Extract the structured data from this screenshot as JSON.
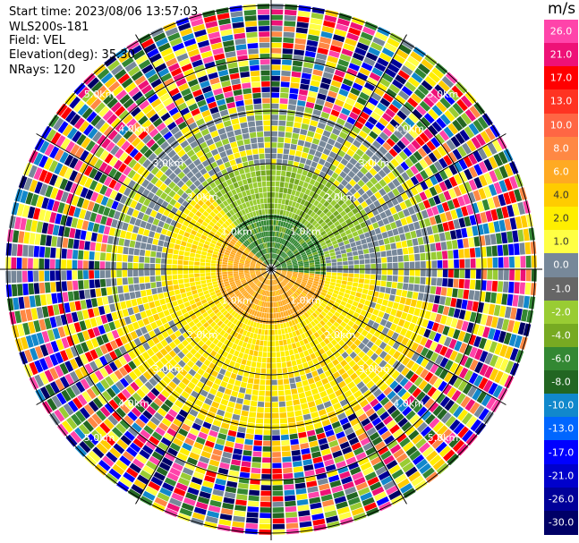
{
  "header": {
    "start_time": "Start time: 2023/08/06 13:57:03",
    "instrument": "WLS200s-181",
    "field": "Field: VEL",
    "elevation": "Elevation(deg): 35.30",
    "nrays": "NRays: 120"
  },
  "colorbar": {
    "unit": "m/s",
    "ticks": [
      "26.0",
      "21.0",
      "17.0",
      "13.0",
      "10.0",
      "8.0",
      "6.0",
      "4.0",
      "2.0",
      "1.0",
      "0.0",
      "-1.0",
      "-2.0",
      "-4.0",
      "-6.0",
      "-8.0",
      "-10.0",
      "-13.0",
      "-17.0",
      "-21.0",
      "-26.0",
      "-30.0"
    ],
    "colors": [
      "#ff44aa",
      "#ee1177",
      "#ff0000",
      "#ff3322",
      "#ff6644",
      "#ff8844",
      "#ffaa22",
      "#ffcc00",
      "#ffee00",
      "#ffff44",
      "#778899",
      "#666666",
      "#99cc33",
      "#77aa22",
      "#338833",
      "#226622",
      "#1188cc",
      "#0066ff",
      "#0000ff",
      "#0000cc",
      "#000099",
      "#000066"
    ]
  },
  "range_labels": [
    "1.0km",
    "2.0km",
    "3.0km",
    "4.0km",
    "5.0km",
    "6.0km"
  ]
}
